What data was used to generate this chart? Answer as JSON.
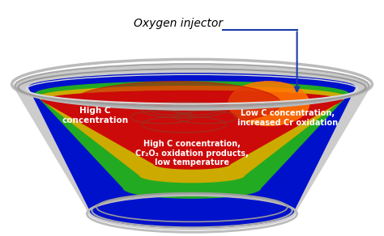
{
  "figure_bg": "#ffffff",
  "title_text": "Oxygen injector",
  "title_style": "italic",
  "title_fontsize": 10,
  "arrow_color": "#1a3aaa",
  "label_left_line1": "High C",
  "label_left_line2": "concentration",
  "label_right_line1": "Low C concentration,",
  "label_right_line2": "increased Cr oxidation",
  "label_bottom_line1": "High C concentration,",
  "label_bottom_line2": "Cr₂O₃ oxidation products,",
  "label_bottom_line3": "low temperature",
  "red_color": "#cc0a0a",
  "orange_color": "#ff7700",
  "green_color": "#22aa22",
  "blue_color": "#0011cc",
  "dark_blue": "#000088",
  "yellow_color": "#ddaa00",
  "rim_color1": "#c0c0c0",
  "rim_color2": "#989898",
  "rim_color3": "#b8b8b8",
  "ring_color": "#993322",
  "label_fontsize": 7.5,
  "label_color": "#ffffff"
}
